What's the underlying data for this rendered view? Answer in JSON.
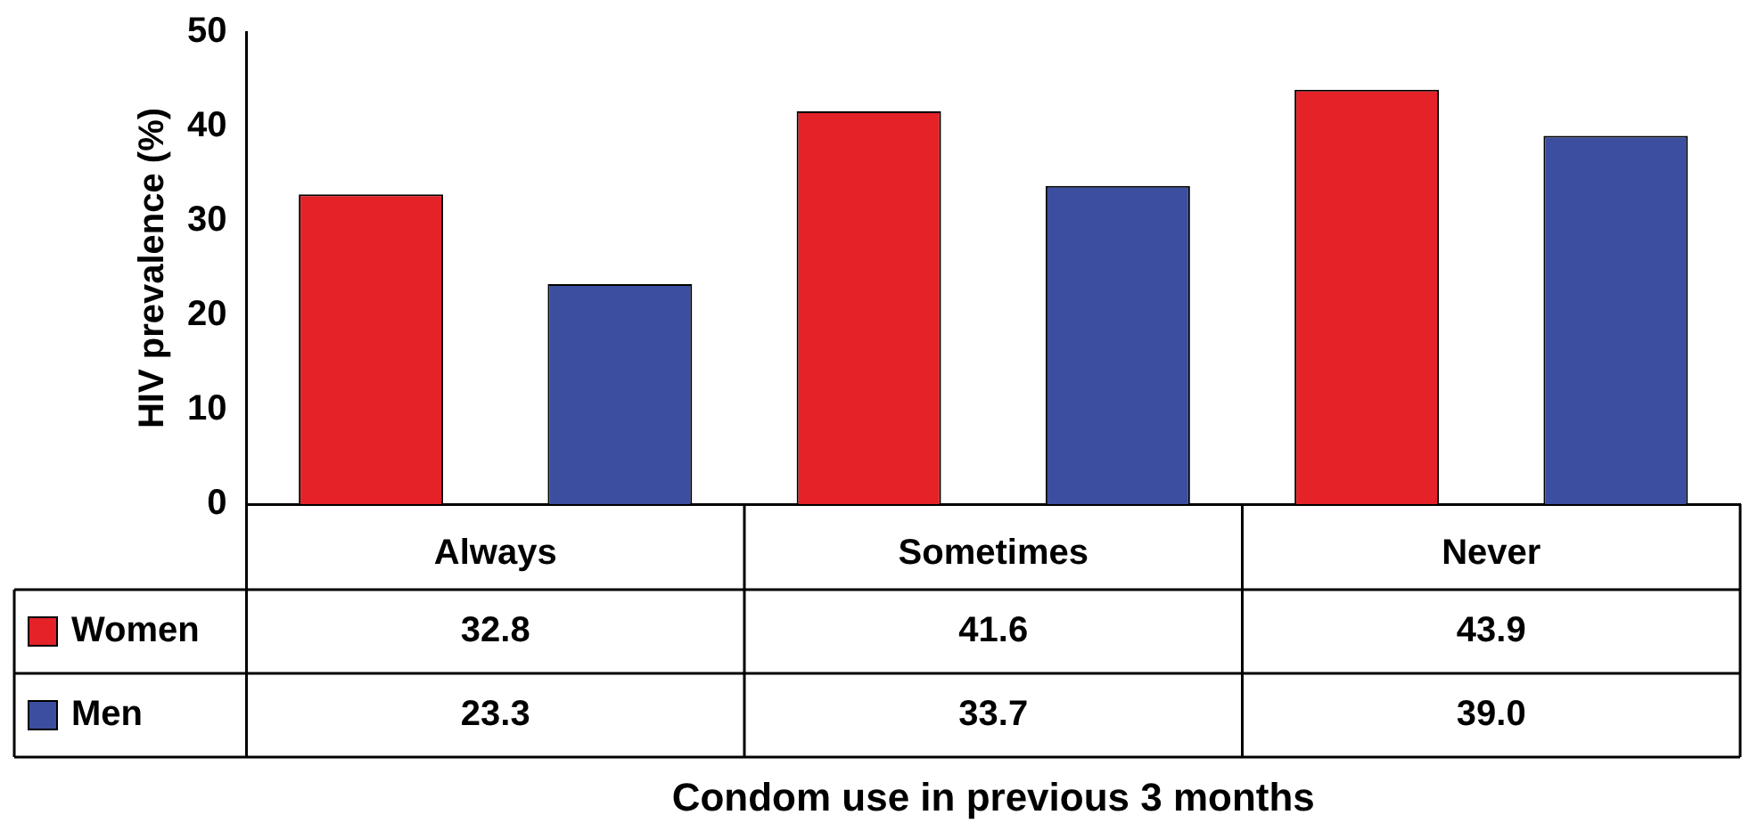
{
  "chart_data": {
    "type": "bar",
    "annotations": [
      "Condom use in previous 3 months"
    ],
    "ylabel": "HIV prevalence (%)",
    "categories": [
      "Always",
      "Sometimes",
      "Never"
    ],
    "series": [
      {
        "name": "Women",
        "color": "#e42228",
        "values": [
          32.8,
          41.6,
          43.9
        ],
        "value_labels": [
          "32.8",
          "41.6",
          "43.9"
        ]
      },
      {
        "name": "Men",
        "color": "#3b4ea0",
        "values": [
          23.3,
          33.7,
          39.0
        ],
        "value_labels": [
          "23.3",
          "33.7",
          "39.0"
        ]
      }
    ],
    "ylim": [
      0,
      50
    ],
    "yticks": [
      0,
      10,
      20,
      30,
      40,
      50
    ],
    "grid": false,
    "legend": "bottom left"
  }
}
